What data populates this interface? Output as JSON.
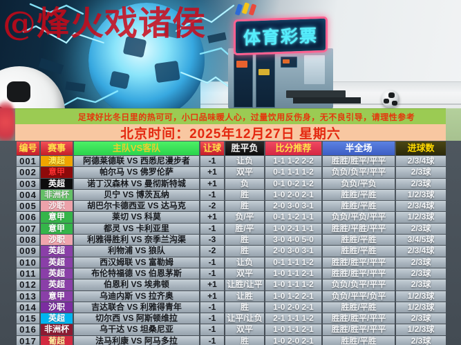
{
  "watermark": "@烽火戏诸侯",
  "hero": {
    "store_sign": "体育彩票"
  },
  "notice_banner": "足球好比冬日里的热可可，小口品味暖人心，过量饮用反伤身，无不良引导，请理性参考",
  "date_banner": "北京时间：2025年12月27日 星期六",
  "colors": {
    "notice_bg": "#9bcb53",
    "date_bg": "#f8c7a1",
    "banner_text": "#e4360d",
    "header_red": "#d52732",
    "header_green": "#3ae05a",
    "header_blue": "#4a6fd4",
    "sign_neon": "#55eefc",
    "sign_trim": "#ff6090"
  },
  "table": {
    "headers": [
      "编号",
      "赛事",
      "主队VS客队",
      "让球",
      "胜平负",
      "比分推荐",
      "半全场",
      "进球数"
    ],
    "rows": [
      {
        "id": "001",
        "league": "澳超",
        "league_bg": "#f0a400",
        "league_color": "#ffe95a",
        "match": "阿德莱德联 VS 西悉尼漫步者",
        "handicap": "-1",
        "wdl": "让负",
        "scores": "1-1 1-2 2-2",
        "half_full": "胜胜/胜平/平平",
        "goals": "2/3/4球"
      },
      {
        "id": "002",
        "league": "意甲",
        "league_bg": "#8e0a0a",
        "league_color": "#ff3030",
        "match": "帕尔马 VS 佛罗伦萨",
        "handicap": "+1",
        "wdl": "双平",
        "scores": "0-1 1-1 1-2",
        "half_full": "负负/负平/平平",
        "goals": "2/3球"
      },
      {
        "id": "003",
        "league": "英超",
        "league_bg": "#0d0d0d",
        "league_color": "#ffffff",
        "match": "诺丁汉森林 VS 曼彻斯特城",
        "handicap": "+1",
        "wdl": "负",
        "scores": "0-1 0-2 1-2",
        "half_full": "负负/平负",
        "goals": "2/3球"
      },
      {
        "id": "004",
        "league": "非洲杯",
        "league_bg": "#64c166",
        "league_color": "#e3e9e3",
        "match": "贝宁 VS 博茨瓦纳",
        "handicap": "-1",
        "wdl": "胜",
        "scores": "1-0 2-0 2-1",
        "half_full": "胜胜/平胜",
        "goals": "1/2/3球"
      },
      {
        "id": "005",
        "league": "沙职",
        "league_bg": "#eda2aa",
        "league_color": "#fdeff1",
        "match": "胡巴尔卡德西亚 VS 达马克",
        "handicap": "-2",
        "wdl": "胜",
        "scores": "2-0 3-0 3-1",
        "half_full": "胜胜/平胜",
        "goals": "2/3/4球"
      },
      {
        "id": "006",
        "league": "意甲",
        "league_bg": "#35b54a",
        "league_color": "#ffffff",
        "match": "莱切 VS 科莫",
        "handicap": "+1",
        "wdl": "负/平",
        "scores": "0-1 1-2 1-1",
        "half_full": "负负/平负/平平",
        "goals": "1/2/3球"
      },
      {
        "id": "007",
        "league": "意甲",
        "league_bg": "#35b54a",
        "league_color": "#ffffff",
        "match": "都灵 VS 卡利亚里",
        "handicap": "-1",
        "wdl": "胜/平",
        "scores": "1-0 2-1 1-1",
        "half_full": "胜胜/平胜/平平",
        "goals": "2/3球"
      },
      {
        "id": "008",
        "league": "沙职",
        "league_bg": "#efa5ad",
        "league_color": "#ffffff",
        "match": "利雅得胜利 VS 奈季兰沟渠",
        "handicap": "-3",
        "wdl": "胜",
        "scores": "3-0 4-0 5-0",
        "half_full": "胜胜/平胜",
        "goals": "3/4/5球"
      },
      {
        "id": "009",
        "league": "英超",
        "league_bg": "#8a3fa8",
        "league_color": "#ffffff",
        "match": "利物浦 VS 狼队",
        "handicap": "-2",
        "wdl": "胜",
        "scores": "2-0 3-0 3-1",
        "half_full": "胜胜/平胜",
        "goals": "2/3/4球"
      },
      {
        "id": "010",
        "league": "英超",
        "league_bg": "#8a3fa8",
        "league_color": "#ffffff",
        "match": "西汉姆联 VS 富勒姆",
        "handicap": "-1",
        "wdl": "让负",
        "scores": "0-1 1-1 1-2",
        "half_full": "胜胜/胜平/平平",
        "goals": "2/3球"
      },
      {
        "id": "011",
        "league": "英超",
        "league_bg": "#8a3fa8",
        "league_color": "#ffffff",
        "match": "布伦特福德 VS 伯恩茅斯",
        "handicap": "-1",
        "wdl": "双平",
        "scores": "1-0 1-1 2-1",
        "half_full": "胜胜/胜平/平平",
        "goals": "2/3球"
      },
      {
        "id": "012",
        "league": "英超",
        "league_bg": "#8a3fa8",
        "league_color": "#ffffff",
        "match": "伯恩利 VS 埃弗顿",
        "handicap": "+1",
        "wdl": "让胜/让平",
        "scores": "1-0 1-1 1-2",
        "half_full": "负负/负平/平平",
        "goals": "2/3球"
      },
      {
        "id": "013",
        "league": "意甲",
        "league_bg": "#8a3fa8",
        "league_color": "#ffffff",
        "match": "乌迪内斯 VS 拉齐奥",
        "handicap": "+1",
        "wdl": "让胜",
        "scores": "1-0 1-2 2-1",
        "half_full": "负负/平平/负平",
        "goals": "1/2/3球"
      },
      {
        "id": "014",
        "league": "沙职",
        "league_bg": "#7b2da0",
        "league_color": "#ffffff",
        "match": "吉达联合 VS 利雅得青年",
        "handicap": "-1",
        "wdl": "胜",
        "scores": "1-0 2-0 2-1",
        "half_full": "胜胜/平胜",
        "goals": "1/2/3球"
      },
      {
        "id": "015",
        "league": "英超",
        "league_bg": "#00b4f0",
        "league_color": "#ffffff",
        "match": "切尔西 VS 阿斯顿维拉",
        "handicap": "-1",
        "wdl": "让平/让负",
        "scores": "2-1 1-1 1-2",
        "half_full": "胜胜/胜平/平平",
        "goals": "2/3球"
      },
      {
        "id": "016",
        "league": "非洲杯",
        "league_bg": "#8c1a32",
        "league_color": "#ffffff",
        "match": "乌干达 VS 坦桑尼亚",
        "handicap": "-1",
        "wdl": "双平",
        "scores": "1-0 1-1 2-1",
        "half_full": "胜胜/胜平/平平",
        "goals": "1/2/3球"
      },
      {
        "id": "017",
        "league": "葡超",
        "league_bg": "#d42a40",
        "league_color": "#ffeca0",
        "match": "法马利康 VS 阿马多拉",
        "handicap": "-1",
        "wdl": "胜",
        "scores": "1-0 2-0 2-1",
        "half_full": "胜胜/平胜",
        "goals": "2/3球"
      }
    ]
  }
}
